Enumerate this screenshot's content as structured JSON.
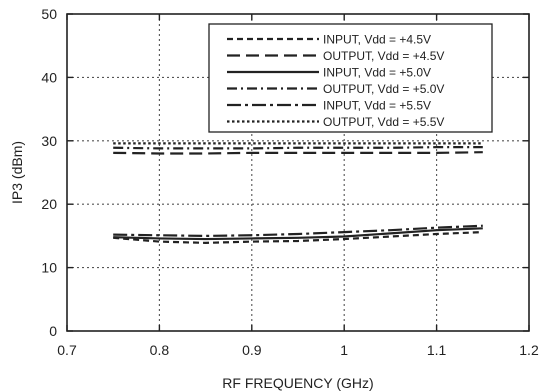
{
  "chart_data": {
    "type": "line",
    "title": "",
    "xlabel": "RF FREQUENCY (GHz)",
    "ylabel": "IP3 (dBm)",
    "xlim": [
      0.7,
      1.2
    ],
    "ylim": [
      0,
      50
    ],
    "x_ticks": [
      0.7,
      0.8,
      0.9,
      1.0,
      1.1,
      1.2
    ],
    "x_tick_labels": [
      "0.7",
      "0.8",
      "0.9",
      "1",
      "1.1",
      "1.2"
    ],
    "y_ticks": [
      0,
      10,
      20,
      30,
      40,
      50
    ],
    "y_tick_labels": [
      "0",
      "10",
      "20",
      "30",
      "40",
      "50"
    ],
    "grid": true,
    "grid_style": "dotted",
    "legend_position": "top-right",
    "series": [
      {
        "name": "INPUT, Vdd = +4.5V",
        "style": "dash-short",
        "x": [
          0.75,
          0.8,
          0.85,
          0.9,
          0.95,
          1.0,
          1.05,
          1.1,
          1.15
        ],
        "y": [
          14.7,
          14.1,
          13.9,
          14.1,
          14.2,
          14.5,
          14.9,
          15.3,
          15.6
        ]
      },
      {
        "name": "OUTPUT, Vdd = +4.5V",
        "style": "dash-long",
        "x": [
          0.75,
          0.8,
          0.85,
          0.9,
          0.95,
          1.0,
          1.05,
          1.1,
          1.15
        ],
        "y": [
          28.1,
          28.0,
          28.0,
          28.1,
          28.1,
          28.1,
          28.1,
          28.1,
          28.2
        ]
      },
      {
        "name": "INPUT, Vdd = +5.0V",
        "style": "solid",
        "x": [
          0.75,
          0.8,
          0.85,
          0.9,
          0.95,
          1.0,
          1.05,
          1.1,
          1.15
        ],
        "y": [
          14.8,
          14.6,
          14.5,
          14.6,
          14.7,
          14.9,
          15.4,
          15.9,
          16.2
        ]
      },
      {
        "name": "OUTPUT, Vdd = +5.0V",
        "style": "dash-dot",
        "x": [
          0.75,
          0.8,
          0.85,
          0.9,
          0.95,
          1.0,
          1.05,
          1.1,
          1.15
        ],
        "y": [
          28.9,
          28.8,
          28.8,
          28.8,
          28.9,
          28.9,
          28.9,
          29.0,
          29.0
        ]
      },
      {
        "name": "INPUT, Vdd = +5.5V",
        "style": "dash-dot-long",
        "x": [
          0.75,
          0.8,
          0.85,
          0.9,
          0.95,
          1.0,
          1.05,
          1.1,
          1.15
        ],
        "y": [
          15.2,
          15.1,
          15.0,
          15.1,
          15.3,
          15.6,
          15.9,
          16.3,
          16.6
        ]
      },
      {
        "name": "OUTPUT, Vdd = +5.5V",
        "style": "dotted",
        "x": [
          0.75,
          0.8,
          0.85,
          0.9,
          0.95,
          1.0,
          1.05,
          1.1,
          1.15
        ],
        "y": [
          29.6,
          29.6,
          29.6,
          29.6,
          29.6,
          29.6,
          29.6,
          29.6,
          29.6
        ]
      }
    ]
  }
}
